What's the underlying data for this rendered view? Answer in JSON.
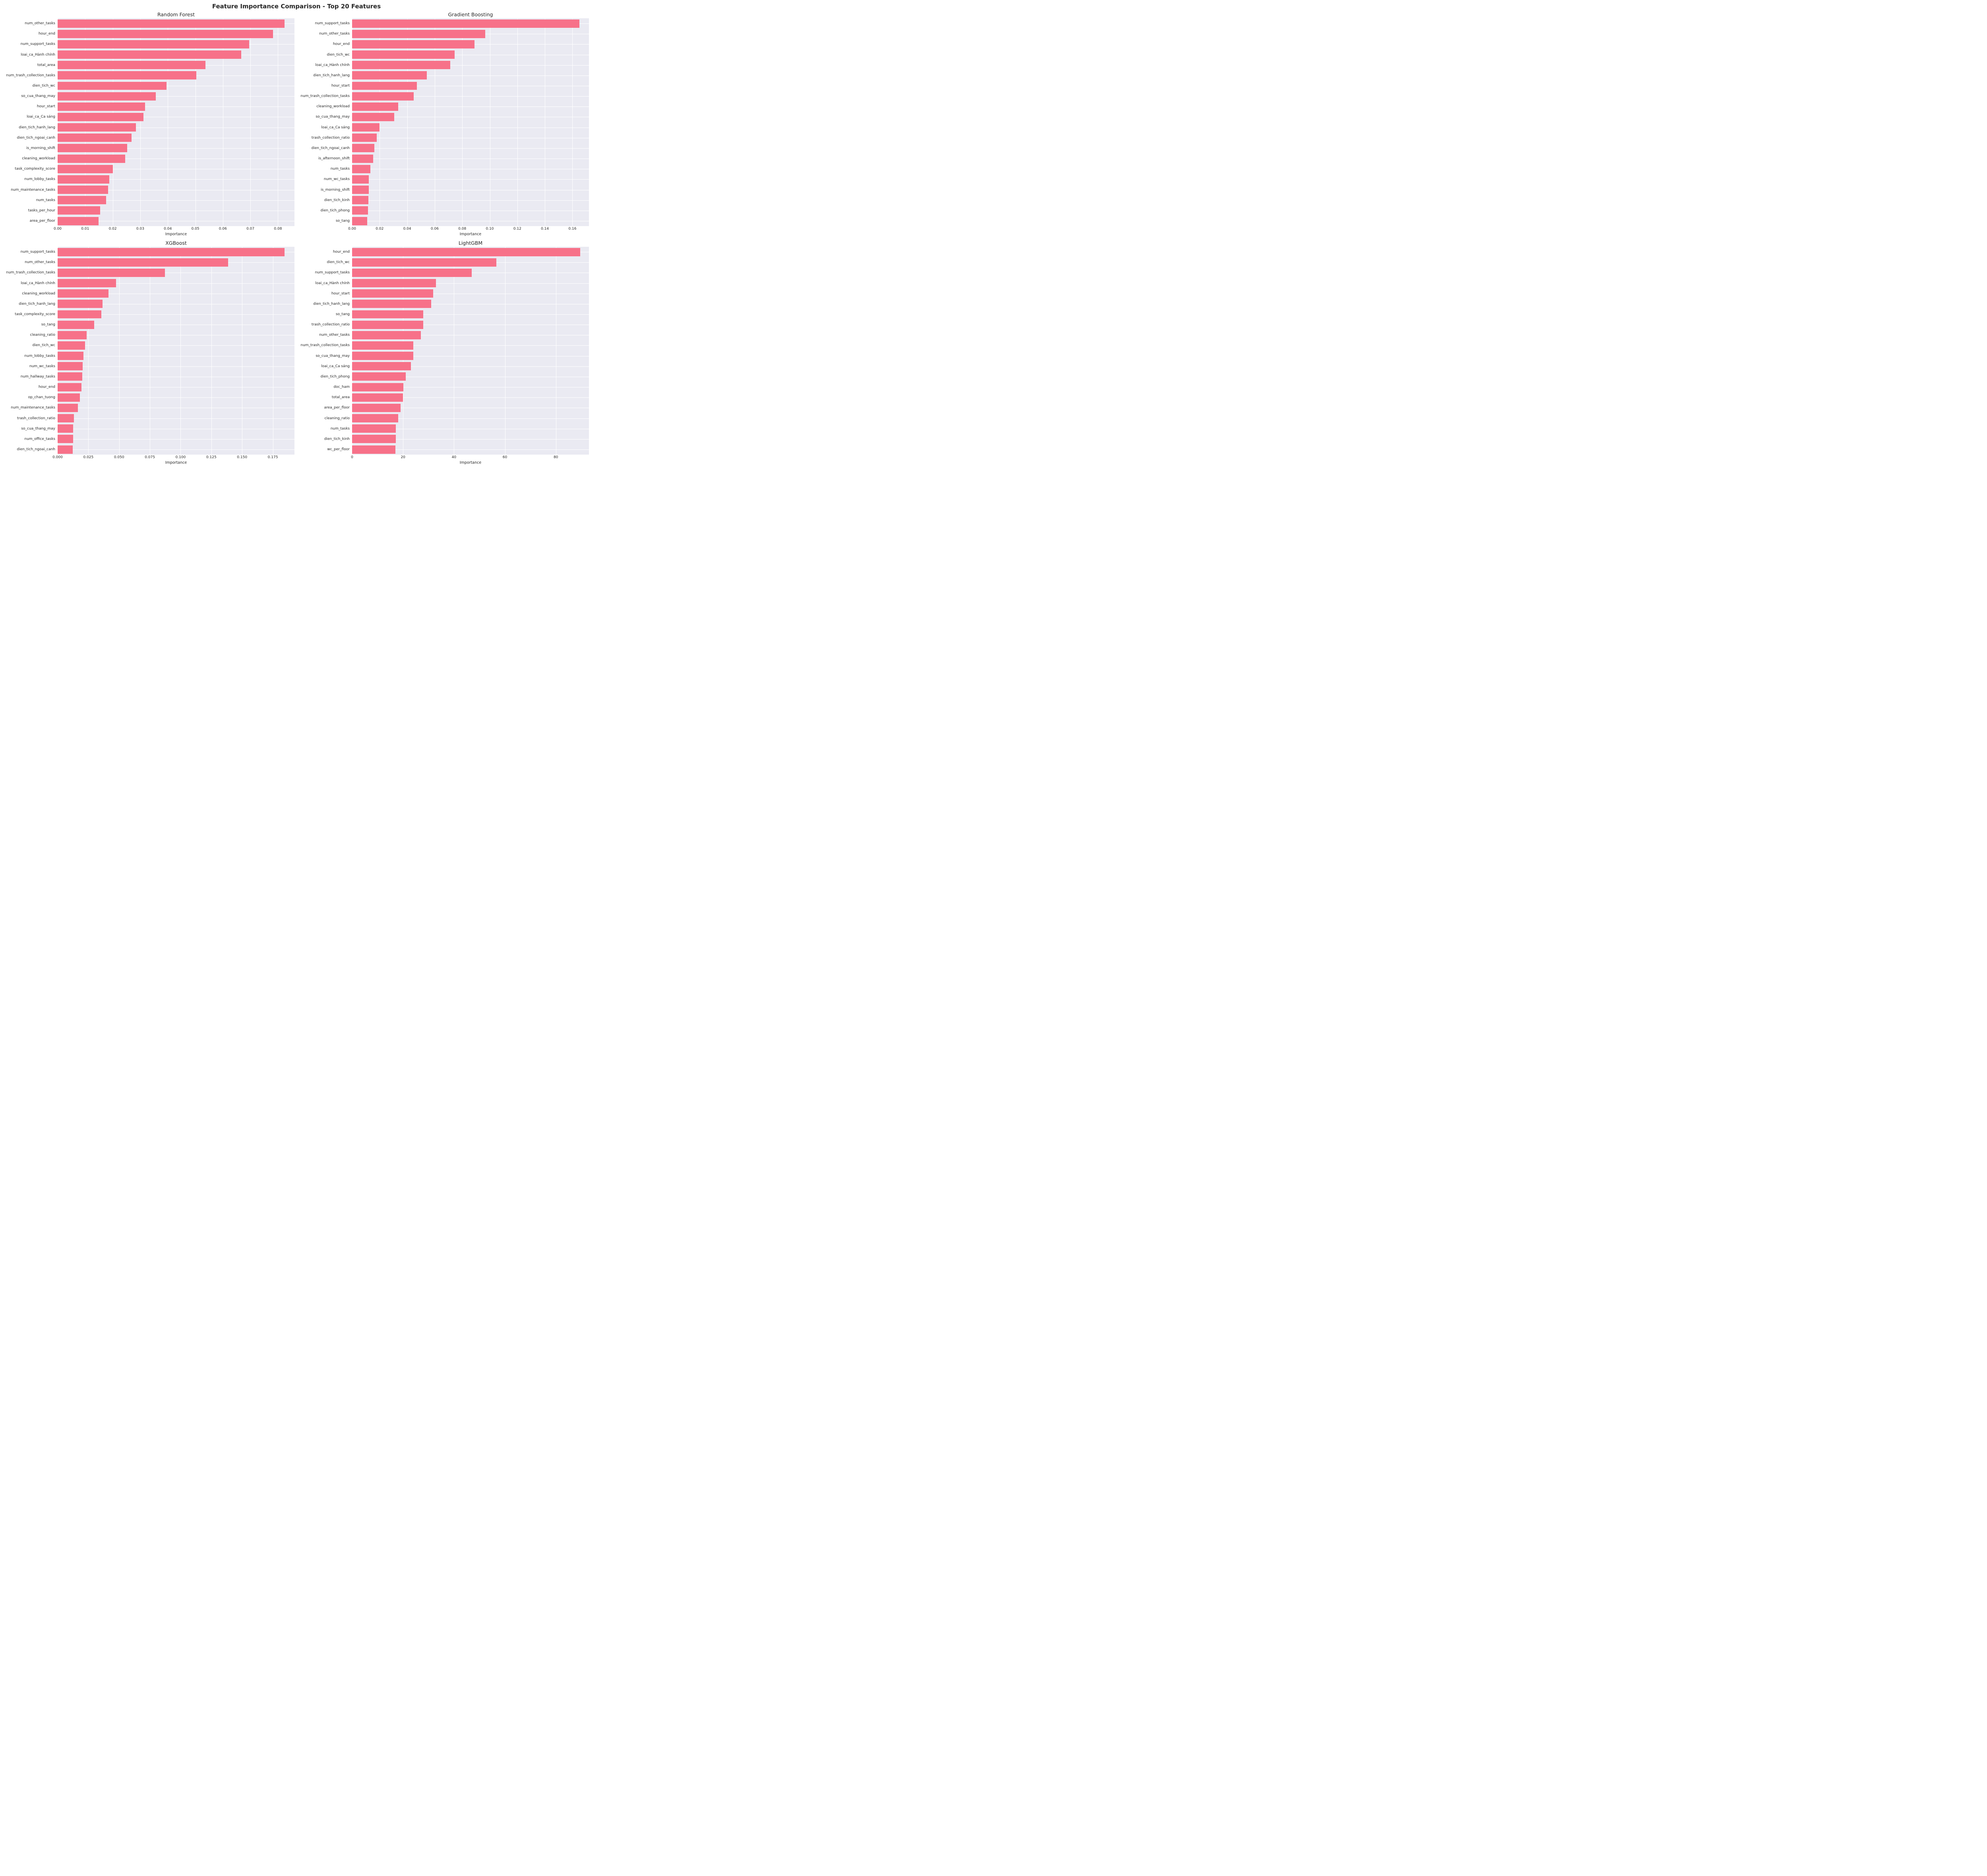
{
  "figure": {
    "title": "Feature Importance Comparison - Top 20 Features",
    "bar_color": "#f77189",
    "plot_bg": "#eaeaf2",
    "grid_color": "#ffffff"
  },
  "chart_data": [
    {
      "type": "bar",
      "orientation": "horizontal",
      "title": "Random Forest",
      "xlabel": "Importance",
      "legend": "none",
      "grid": true,
      "xlim": [
        0,
        0.086
      ],
      "xticks": [
        0.0,
        0.01,
        0.02,
        0.03,
        0.04,
        0.05,
        0.06,
        0.07,
        0.08
      ],
      "xtick_labels": [
        "0.00",
        "0.01",
        "0.02",
        "0.03",
        "0.04",
        "0.05",
        "0.06",
        "0.07",
        "0.08"
      ],
      "categories": [
        "num_other_tasks",
        "hour_end",
        "num_support_tasks",
        "loai_ca_Hành chính",
        "total_area",
        "num_trash_collection_tasks",
        "dien_tich_wc",
        "so_cua_thang_may",
        "hour_start",
        "loai_ca_Ca sáng",
        "dien_tich_hanh_lang",
        "dien_tich_ngoai_canh",
        "is_morning_shift",
        "cleaning_workload",
        "task_complexity_score",
        "num_lobby_tasks",
        "num_maintenance_tasks",
        "num_tasks",
        "tasks_per_hour",
        "area_per_floor"
      ],
      "values": [
        0.0824,
        0.0782,
        0.0696,
        0.0667,
        0.0537,
        0.0503,
        0.0396,
        0.0357,
        0.0318,
        0.0312,
        0.0284,
        0.0269,
        0.0253,
        0.0245,
        0.0201,
        0.0188,
        0.0183,
        0.0176,
        0.0155,
        0.0149
      ]
    },
    {
      "type": "bar",
      "orientation": "horizontal",
      "title": "Gradient Boosting",
      "xlabel": "Importance",
      "legend": "none",
      "grid": true,
      "xlim": [
        0,
        0.172
      ],
      "xticks": [
        0.0,
        0.02,
        0.04,
        0.06,
        0.08,
        0.1,
        0.12,
        0.14,
        0.16
      ],
      "xtick_labels": [
        "0.00",
        "0.02",
        "0.04",
        "0.06",
        "0.08",
        "0.10",
        "0.12",
        "0.14",
        "0.16"
      ],
      "categories": [
        "num_support_tasks",
        "num_other_tasks",
        "hour_end",
        "dien_tich_wc",
        "loai_ca_Hành chính",
        "dien_tich_hanh_lang",
        "hour_start",
        "num_trash_collection_tasks",
        "cleaning_workload",
        "so_cua_thang_may",
        "loai_ca_Ca sáng",
        "trash_collection_ratio",
        "dien_tich_ngoai_canh",
        "is_afternoon_shift",
        "num_tasks",
        "num_wc_tasks",
        "is_morning_shift",
        "dien_tich_kinh",
        "dien_tich_phong",
        "so_tang"
      ],
      "values": [
        0.165,
        0.0966,
        0.089,
        0.0745,
        0.0712,
        0.0543,
        0.0469,
        0.0447,
        0.0334,
        0.0307,
        0.0199,
        0.0178,
        0.0162,
        0.0153,
        0.0133,
        0.0122,
        0.012,
        0.0117,
        0.0116,
        0.0111
      ]
    },
    {
      "type": "bar",
      "orientation": "horizontal",
      "title": "XGBoost",
      "xlabel": "Importance",
      "legend": "none",
      "grid": true,
      "xlim": [
        0,
        0.1926
      ],
      "xticks": [
        0.0,
        0.025,
        0.05,
        0.075,
        0.1,
        0.125,
        0.15,
        0.175
      ],
      "xtick_labels": [
        "0.000",
        "0.025",
        "0.050",
        "0.075",
        "0.100",
        "0.125",
        "0.150",
        "0.175"
      ],
      "categories": [
        "num_support_tasks",
        "num_other_tasks",
        "num_trash_collection_tasks",
        "loai_ca_Hành chính",
        "cleaning_workload",
        "dien_tich_hanh_lang",
        "task_complexity_score",
        "so_tang",
        "cleaning_ratio",
        "dien_tich_wc",
        "num_lobby_tasks",
        "num_wc_tasks",
        "num_hallway_tasks",
        "hour_end",
        "op_chan_tuong",
        "num_maintenance_tasks",
        "trash_collection_ratio",
        "so_cua_thang_may",
        "num_office_tasks",
        "dien_tich_ngoai_canh"
      ],
      "values": [
        0.1846,
        0.1387,
        0.0871,
        0.0476,
        0.0415,
        0.0366,
        0.0355,
        0.0298,
        0.0236,
        0.0223,
        0.021,
        0.0205,
        0.0199,
        0.0194,
        0.0182,
        0.0164,
        0.0133,
        0.0127,
        0.0126,
        0.0122
      ]
    },
    {
      "type": "bar",
      "orientation": "horizontal",
      "title": "LightGBM",
      "xlabel": "Importance",
      "legend": "none",
      "grid": true,
      "xlim": [
        0,
        93
      ],
      "xticks": [
        0,
        20,
        40,
        60,
        80
      ],
      "xtick_labels": [
        "0",
        "20",
        "40",
        "60",
        "80"
      ],
      "categories": [
        "hour_end",
        "dien_tich_wc",
        "num_support_tasks",
        "loai_ca_Hành chính",
        "hour_start",
        "dien_tich_hanh_lang",
        "so_tang",
        "trash_collection_ratio",
        "num_other_tasks",
        "num_trash_collection_tasks",
        "so_cua_thang_may",
        "loai_ca_Ca sáng",
        "dien_tich_phong",
        "doc_ham",
        "total_area",
        "area_per_floor",
        "cleaning_ratio",
        "num_tasks",
        "dien_tich_kinh",
        "wc_per_floor"
      ],
      "values": [
        89.5,
        56.7,
        46.9,
        33.0,
        31.9,
        31.0,
        28.0,
        28.0,
        27.0,
        24.0,
        24.0,
        23.1,
        21.1,
        20.1,
        20.0,
        19.1,
        18.1,
        17.1,
        17.1,
        17.0
      ]
    }
  ]
}
